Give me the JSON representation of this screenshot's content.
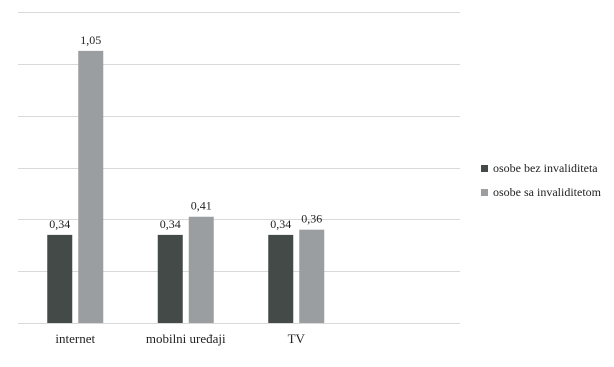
{
  "chart_data": {
    "type": "bar",
    "categories": [
      "internet",
      "mobilni uređaji",
      "TV"
    ],
    "series": [
      {
        "name": "osobe bez invaliditeta",
        "values": [
          0.34,
          0.34,
          0.34
        ],
        "labels": [
          "0,34",
          "0,34",
          "0,34"
        ],
        "color": "#434a48"
      },
      {
        "name": "osobe sa invaliditetom",
        "values": [
          1.05,
          0.41,
          0.36
        ],
        "labels": [
          "1,05",
          "0,41",
          "0,36"
        ],
        "color": "#9b9ea0"
      }
    ],
    "ylim": [
      0,
      1.2
    ],
    "grid": true,
    "legend_position": "right"
  }
}
